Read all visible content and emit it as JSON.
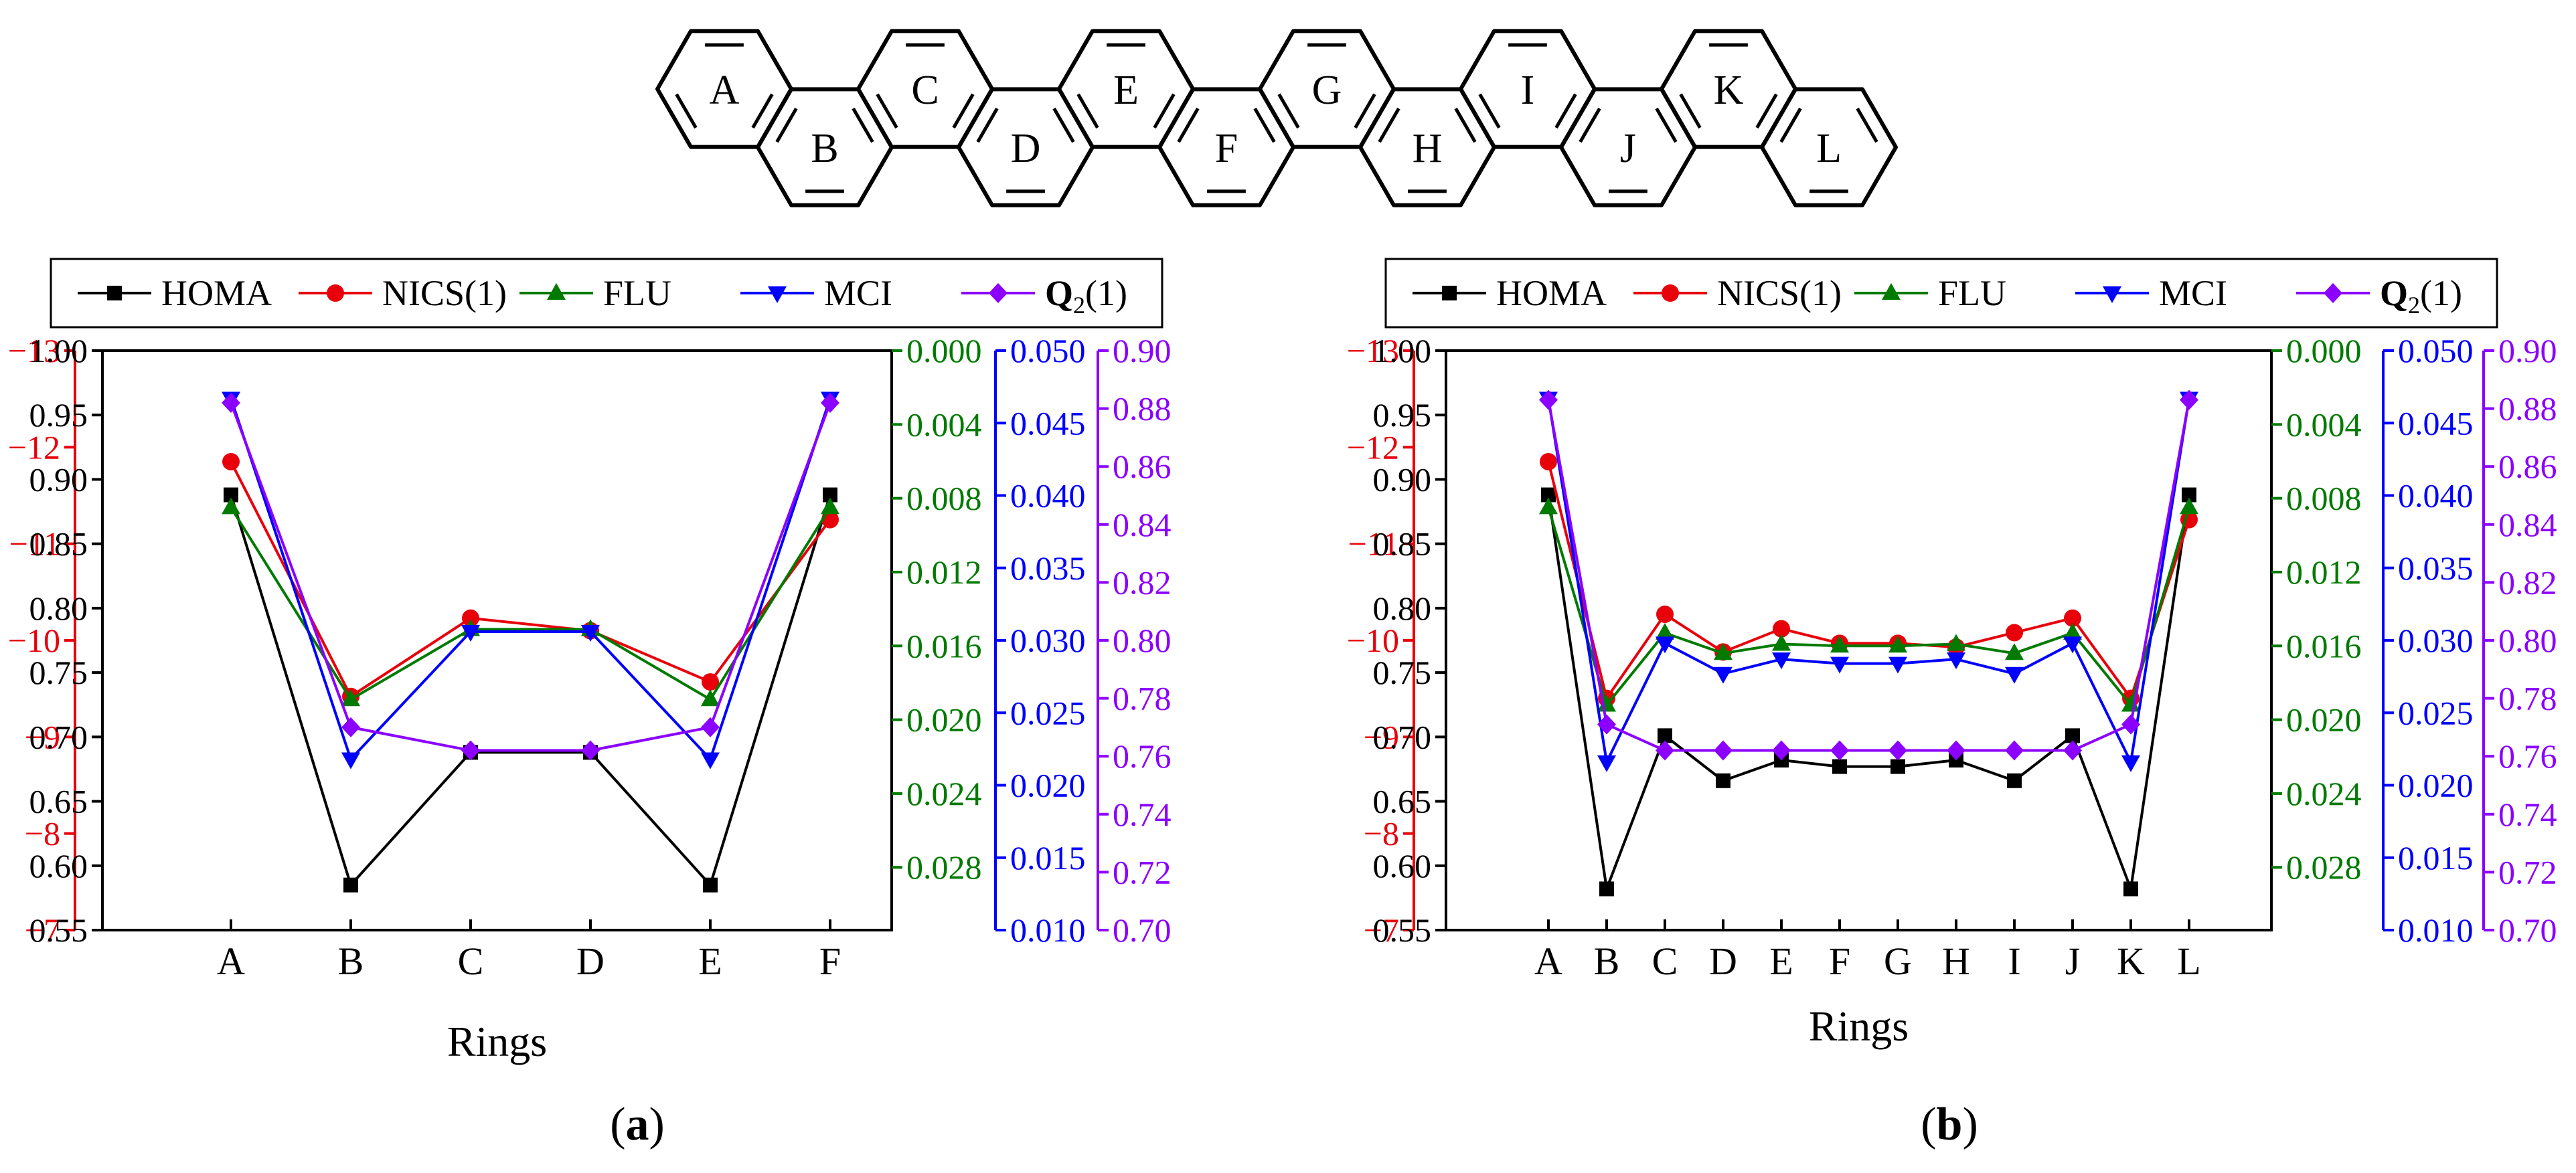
{
  "figure": {
    "molecule_ring_labels": [
      "A",
      "B",
      "C",
      "D",
      "E",
      "F",
      "G",
      "H",
      "I",
      "J",
      "K",
      "L"
    ],
    "legend": [
      {
        "key": "homa",
        "label": "HOMA",
        "color": "#000000",
        "marker": "square"
      },
      {
        "key": "nics",
        "label": "NICS(1)",
        "color": "#e8000b",
        "marker": "circle"
      },
      {
        "key": "flu",
        "label": "FLU",
        "color": "#007a00",
        "marker": "triangle-up"
      },
      {
        "key": "mci",
        "label": "MCI",
        "color": "#0000ff",
        "marker": "triangle-down"
      },
      {
        "key": "q2",
        "label_main": "Q",
        "label_sub": "2",
        "label_suffix": "(1)",
        "color": "#8b00ff",
        "marker": "diamond"
      }
    ],
    "axis_colors": {
      "homa": "#000000",
      "nics": "#e8000b",
      "flu": "#007a00",
      "mci": "#0000ff",
      "q2": "#8b00ff"
    }
  },
  "chart_data": [
    {
      "type": "line",
      "panel_label": "(a)",
      "xlabel": "Rings",
      "categories": [
        "A",
        "B",
        "C",
        "D",
        "E",
        "F"
      ],
      "axes": {
        "nics": {
          "ticks": [
            "−13",
            "−12",
            "−11",
            "−10",
            "−9",
            "−8",
            "−7"
          ],
          "range": [
            -13,
            -7
          ],
          "inverted": true
        },
        "homa": {
          "ticks": [
            "1.00",
            "0.95",
            "0.90",
            "0.85",
            "0.80",
            "0.75",
            "0.70",
            "0.65",
            "0.60",
            "0.55"
          ],
          "range": [
            0.55,
            1.0
          ]
        },
        "flu": {
          "ticks": [
            "0.000",
            "0.004",
            "0.008",
            "0.012",
            "0.016",
            "0.020",
            "0.024",
            "0.028"
          ],
          "range": [
            0.0,
            0.0314
          ],
          "inverted": true
        },
        "mci": {
          "ticks": [
            "0.050",
            "0.045",
            "0.040",
            "0.035",
            "0.030",
            "0.025",
            "0.020",
            "0.015",
            "0.010"
          ],
          "range": [
            0.01,
            0.05
          ]
        },
        "q2": {
          "ticks": [
            "0.90",
            "0.88",
            "0.86",
            "0.84",
            "0.82",
            "0.80",
            "0.78",
            "0.76",
            "0.74",
            "0.72",
            "0.70"
          ],
          "range": [
            0.7,
            0.9
          ]
        }
      },
      "series": [
        {
          "key": "homa",
          "name": "HOMA",
          "values": [
            0.888,
            0.585,
            0.688,
            0.688,
            0.585,
            0.888
          ]
        },
        {
          "key": "nics",
          "name": "NICS(1)",
          "values": [
            -11.85,
            -9.42,
            -10.23,
            -10.1,
            -9.57,
            -11.25
          ]
        },
        {
          "key": "flu",
          "name": "FLU",
          "values": [
            0.0085,
            0.0189,
            0.0151,
            0.0151,
            0.0189,
            0.0085
          ]
        },
        {
          "key": "mci",
          "name": "MCI",
          "values": [
            0.0467,
            0.0218,
            0.0306,
            0.0306,
            0.0218,
            0.0467
          ]
        },
        {
          "key": "q2",
          "name": "Q2(1)",
          "values": [
            0.882,
            0.77,
            0.762,
            0.762,
            0.77,
            0.882
          ]
        }
      ]
    },
    {
      "type": "line",
      "panel_label": "(b)",
      "xlabel": "Rings",
      "categories": [
        "A",
        "B",
        "C",
        "D",
        "E",
        "F",
        "G",
        "H",
        "I",
        "J",
        "K",
        "L"
      ],
      "axes": {
        "nics": {
          "ticks": [
            "−13",
            "−12",
            "−11",
            "−10",
            "−9",
            "−8",
            "−7"
          ],
          "range": [
            -13,
            -7
          ],
          "inverted": true
        },
        "homa": {
          "ticks": [
            "1.00",
            "0.95",
            "0.90",
            "0.85",
            "0.80",
            "0.75",
            "0.70",
            "0.65",
            "0.60",
            "0.55"
          ],
          "range": [
            0.55,
            1.0
          ]
        },
        "flu": {
          "ticks": [
            "0.000",
            "0.004",
            "0.008",
            "0.012",
            "0.016",
            "0.020",
            "0.024",
            "0.028"
          ],
          "range": [
            0.0,
            0.0314
          ],
          "inverted": true
        },
        "mci": {
          "ticks": [
            "0.050",
            "0.045",
            "0.040",
            "0.035",
            "0.030",
            "0.025",
            "0.020",
            "0.015",
            "0.010"
          ],
          "range": [
            0.01,
            0.05
          ]
        },
        "q2": {
          "ticks": [
            "0.90",
            "0.88",
            "0.86",
            "0.84",
            "0.82",
            "0.80",
            "0.78",
            "0.76",
            "0.74",
            "0.72",
            "0.70"
          ],
          "range": [
            0.7,
            0.9
          ]
        }
      },
      "series": [
        {
          "key": "homa",
          "name": "HOMA",
          "values": [
            0.888,
            0.582,
            0.701,
            0.666,
            0.682,
            0.677,
            0.677,
            0.682,
            0.666,
            0.701,
            0.582,
            0.888
          ]
        },
        {
          "key": "nics",
          "name": "NICS(1)",
          "values": [
            -11.85,
            -9.4,
            -10.27,
            -9.88,
            -10.12,
            -9.97,
            -9.97,
            -9.93,
            -10.08,
            -10.23,
            -9.4,
            -11.25
          ]
        },
        {
          "key": "flu",
          "name": "FLU",
          "values": [
            0.0085,
            0.0192,
            0.0153,
            0.0164,
            0.0159,
            0.016,
            0.016,
            0.0159,
            0.0164,
            0.0153,
            0.0192,
            0.0085
          ]
        },
        {
          "key": "mci",
          "name": "MCI",
          "values": [
            0.0467,
            0.0216,
            0.0298,
            0.0277,
            0.0287,
            0.0284,
            0.0284,
            0.0287,
            0.0277,
            0.0298,
            0.0216,
            0.0467
          ]
        },
        {
          "key": "q2",
          "name": "Q2(1)",
          "values": [
            0.883,
            0.771,
            0.762,
            0.762,
            0.762,
            0.762,
            0.762,
            0.762,
            0.762,
            0.762,
            0.771,
            0.883
          ]
        }
      ]
    }
  ]
}
